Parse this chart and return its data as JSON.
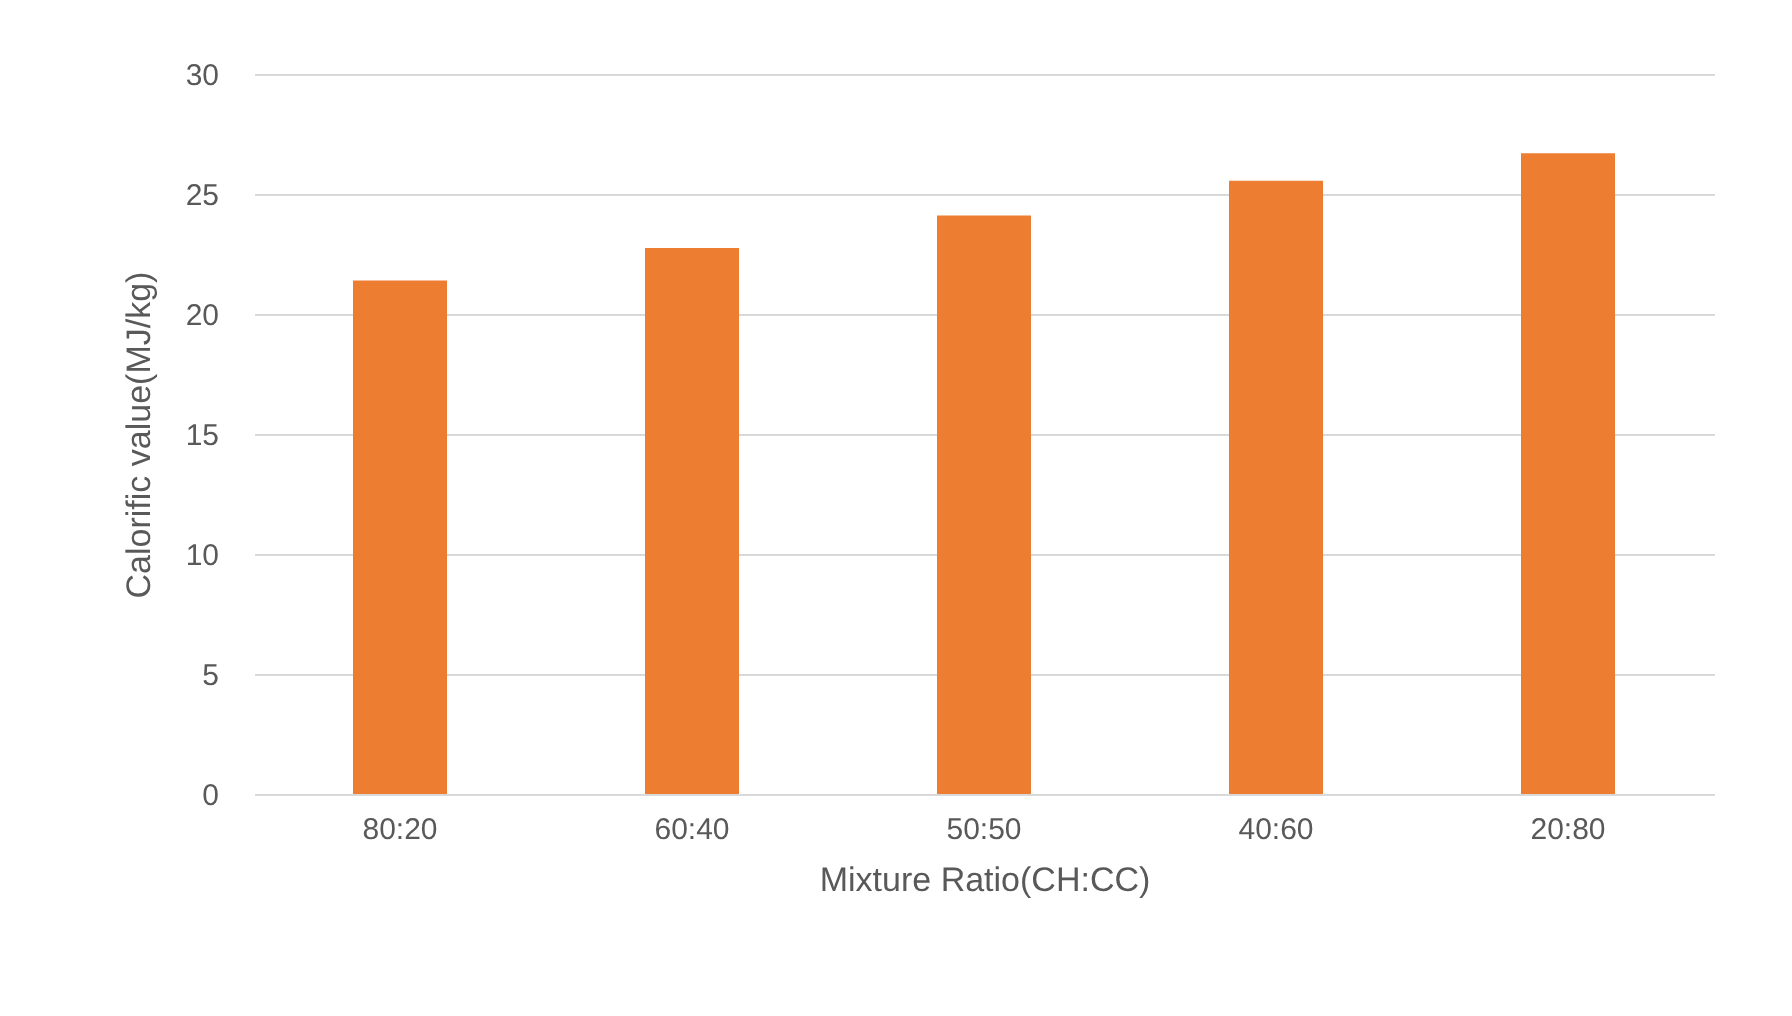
{
  "chart_data": {
    "type": "bar",
    "xlabel": "Mixture Ratio(CH:CC)",
    "ylabel": "Calorific value(MJ/kg)",
    "categories": [
      "80:20",
      "60:40",
      "50:50",
      "40:60",
      "20:80"
    ],
    "values": [
      21.4,
      22.75,
      24.1,
      25.55,
      26.7
    ],
    "color": "#ed7d31",
    "ylim": [
      0,
      30
    ],
    "yticks": [
      0,
      5,
      10,
      15,
      20,
      25,
      30
    ],
    "grid": "y"
  }
}
